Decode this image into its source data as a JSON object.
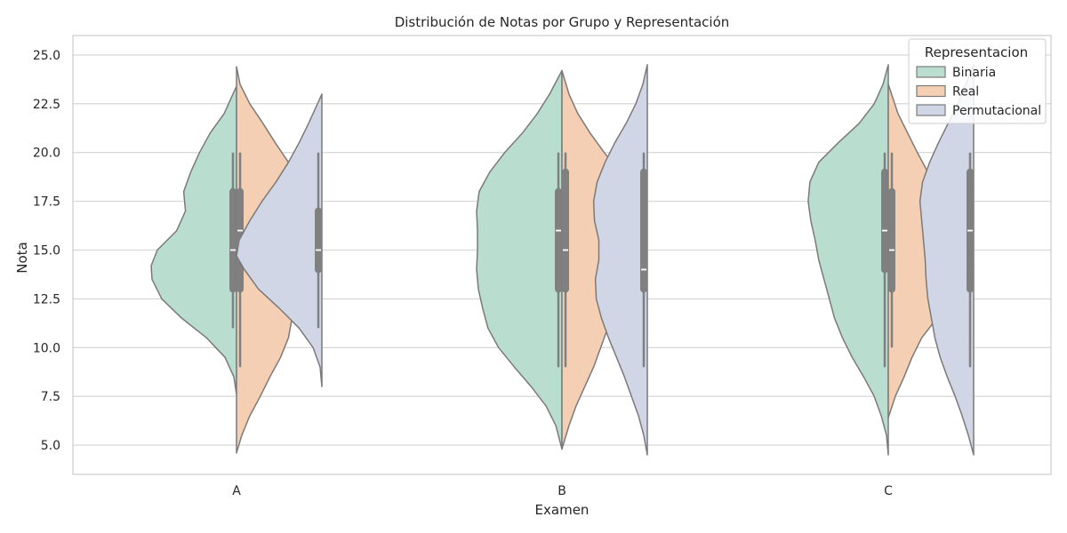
{
  "chart_data": {
    "type": "violin",
    "title": "Distribución de Notas por Grupo y Representación",
    "xlabel": "Examen",
    "ylabel": "Nota",
    "categories": [
      "A",
      "B",
      "C"
    ],
    "ylim": [
      3.5,
      26.0
    ],
    "yticks": [
      "5.0",
      "7.5",
      "10.0",
      "12.5",
      "15.0",
      "17.5",
      "20.0",
      "22.5",
      "25.0"
    ],
    "grid": true,
    "legend": {
      "title": "Representacion",
      "position": "top-right",
      "entries": [
        "Binaria",
        "Real",
        "Permutacional"
      ]
    },
    "colors": {
      "Binaria": "#b9decf",
      "Real": "#f4cfb4",
      "Permutacional": "#d0d6e6",
      "outline": "#7a7a7a",
      "inner": "#808080",
      "grid": "#d3d3d3"
    },
    "series": [
      {
        "name": "Binaria",
        "groups": [
          {
            "category": "A",
            "min": 11,
            "q1": 13,
            "median": 15,
            "q3": 18,
            "max": 20,
            "density": [
              [
                7.6,
                0
              ],
              [
                8.5,
                3
              ],
              [
                9.5,
                13
              ],
              [
                10.5,
                34
              ],
              [
                11.5,
                62
              ],
              [
                12.5,
                85
              ],
              [
                13.5,
                96
              ],
              [
                14.2,
                97
              ],
              [
                15,
                90
              ],
              [
                16,
                68
              ],
              [
                17,
                58
              ],
              [
                18,
                60
              ],
              [
                19,
                52
              ],
              [
                20,
                42
              ],
              [
                21,
                30
              ],
              [
                22,
                14
              ],
              [
                23.4,
                0
              ]
            ]
          },
          {
            "category": "B",
            "min": 9,
            "q1": 13,
            "median": 16,
            "q3": 18,
            "max": 20,
            "density": [
              [
                4.8,
                0
              ],
              [
                6,
                7
              ],
              [
                7,
                18
              ],
              [
                8,
                35
              ],
              [
                9,
                54
              ],
              [
                10,
                72
              ],
              [
                11,
                84
              ],
              [
                12,
                90
              ],
              [
                13,
                95
              ],
              [
                14,
                97
              ],
              [
                15,
                96
              ],
              [
                16,
                96
              ],
              [
                17,
                97
              ],
              [
                18,
                94
              ],
              [
                19,
                82
              ],
              [
                20,
                65
              ],
              [
                21,
                45
              ],
              [
                22,
                28
              ],
              [
                23,
                14
              ],
              [
                24.2,
                0
              ]
            ]
          },
          {
            "category": "C",
            "min": 9,
            "q1": 14,
            "median": 16,
            "q3": 19,
            "max": 20,
            "density": [
              [
                4.5,
                0
              ],
              [
                5.5,
                2
              ],
              [
                6.5,
                8
              ],
              [
                7.5,
                16
              ],
              [
                8.5,
                28
              ],
              [
                9.5,
                41
              ],
              [
                10.5,
                52
              ],
              [
                11.5,
                61
              ],
              [
                12.5,
                67
              ],
              [
                13.5,
                73
              ],
              [
                14.5,
                79
              ],
              [
                15.5,
                83
              ],
              [
                16.5,
                88
              ],
              [
                17.5,
                91
              ],
              [
                18.5,
                89
              ],
              [
                19.5,
                79
              ],
              [
                20.5,
                57
              ],
              [
                21.5,
                33
              ],
              [
                22.5,
                16
              ],
              [
                23.5,
                6
              ],
              [
                24.5,
                0
              ]
            ]
          }
        ]
      },
      {
        "name": "Real",
        "groups": [
          {
            "category": "A",
            "min": 9,
            "q1": 13,
            "median": 16,
            "q3": 18,
            "max": 20,
            "density": [
              [
                4.6,
                0
              ],
              [
                5.5,
                6
              ],
              [
                6.5,
                15
              ],
              [
                7.5,
                27
              ],
              [
                8.5,
                38
              ],
              [
                9.5,
                50
              ],
              [
                10.5,
                59
              ],
              [
                11.5,
                63
              ],
              [
                12.5,
                64
              ],
              [
                13.5,
                65
              ],
              [
                14.5,
                68
              ],
              [
                15.5,
                70
              ],
              [
                16.5,
                78
              ],
              [
                17.5,
                79
              ],
              [
                18.5,
                73
              ],
              [
                19.5,
                59
              ],
              [
                20.5,
                44
              ],
              [
                21.5,
                30
              ],
              [
                22.5,
                15
              ],
              [
                23.5,
                4
              ],
              [
                24.4,
                0
              ]
            ]
          },
          {
            "category": "B",
            "min": 9,
            "q1": 13,
            "median": 15,
            "q3": 19,
            "max": 20,
            "density": [
              [
                4.8,
                0
              ],
              [
                6,
                8
              ],
              [
                7,
                16
              ],
              [
                8,
                26
              ],
              [
                9,
                36
              ],
              [
                10,
                44
              ],
              [
                11,
                52
              ],
              [
                12,
                60
              ],
              [
                13,
                66
              ],
              [
                14,
                70
              ],
              [
                15,
                74
              ],
              [
                16,
                76
              ],
              [
                17,
                78
              ],
              [
                18,
                76
              ],
              [
                19,
                66
              ],
              [
                20,
                48
              ],
              [
                21,
                32
              ],
              [
                22,
                18
              ],
              [
                23,
                8
              ],
              [
                24.2,
                0
              ]
            ]
          },
          {
            "category": "C",
            "min": 10,
            "q1": 13,
            "median": 15,
            "q3": 18,
            "max": 20,
            "density": [
              [
                6.4,
                0
              ],
              [
                7.5,
                8
              ],
              [
                8.5,
                18
              ],
              [
                9.5,
                27
              ],
              [
                10.5,
                38
              ],
              [
                11.5,
                55
              ],
              [
                12.5,
                77
              ],
              [
                13.5,
                94
              ],
              [
                14.2,
                97
              ],
              [
                15,
                90
              ],
              [
                16,
                73
              ],
              [
                17,
                62
              ],
              [
                18,
                55
              ],
              [
                19,
                45
              ],
              [
                20,
                33
              ],
              [
                21,
                22
              ],
              [
                22,
                11
              ],
              [
                23.5,
                0
              ]
            ]
          }
        ]
      },
      {
        "name": "Permutacional",
        "groups": [
          {
            "category": "A",
            "min": 11,
            "q1": 14,
            "median": 15,
            "q3": 17,
            "max": 20,
            "density": [
              [
                8,
                0
              ],
              [
                9,
                2
              ],
              [
                10,
                10
              ],
              [
                11,
                26
              ],
              [
                12,
                48
              ],
              [
                13,
                72
              ],
              [
                14,
                88
              ],
              [
                14.7,
                97
              ],
              [
                15.5,
                94
              ],
              [
                16.5,
                82
              ],
              [
                17.5,
                68
              ],
              [
                18.5,
                52
              ],
              [
                19.5,
                38
              ],
              [
                20.5,
                26
              ],
              [
                21.5,
                15
              ],
              [
                22.5,
                5
              ],
              [
                23,
                0
              ]
            ]
          },
          {
            "category": "B",
            "min": 9,
            "q1": 13,
            "median": 14,
            "q3": 19,
            "max": 20,
            "density": [
              [
                4.5,
                0
              ],
              [
                5.5,
                4
              ],
              [
                6.5,
                10
              ],
              [
                7.5,
                18
              ],
              [
                8.5,
                26
              ],
              [
                9.5,
                35
              ],
              [
                10.5,
                44
              ],
              [
                11.5,
                52
              ],
              [
                12.5,
                58
              ],
              [
                13.5,
                59
              ],
              [
                14.5,
                55
              ],
              [
                15.5,
                55
              ],
              [
                16.5,
                60
              ],
              [
                17.5,
                61
              ],
              [
                18.5,
                57
              ],
              [
                19.5,
                48
              ],
              [
                20.5,
                37
              ],
              [
                21.5,
                24
              ],
              [
                22.5,
                13
              ],
              [
                23.5,
                5
              ],
              [
                24.5,
                0
              ]
            ]
          },
          {
            "category": "C",
            "min": 9,
            "q1": 13,
            "median": 16,
            "q3": 19,
            "max": 20,
            "density": [
              [
                4.5,
                0
              ],
              [
                5.5,
                6
              ],
              [
                6.5,
                13
              ],
              [
                7.5,
                21
              ],
              [
                8.5,
                30
              ],
              [
                9.5,
                38
              ],
              [
                10.5,
                44
              ],
              [
                11.5,
                48
              ],
              [
                12.5,
                52
              ],
              [
                13.5,
                54
              ],
              [
                14.5,
                55
              ],
              [
                15.5,
                57
              ],
              [
                16.5,
                59
              ],
              [
                17.5,
                61
              ],
              [
                18.5,
                58
              ],
              [
                19.5,
                50
              ],
              [
                20.5,
                40
              ],
              [
                21.5,
                29
              ],
              [
                22.5,
                18
              ],
              [
                23.5,
                9
              ],
              [
                24.5,
                0
              ]
            ]
          }
        ]
      }
    ]
  }
}
